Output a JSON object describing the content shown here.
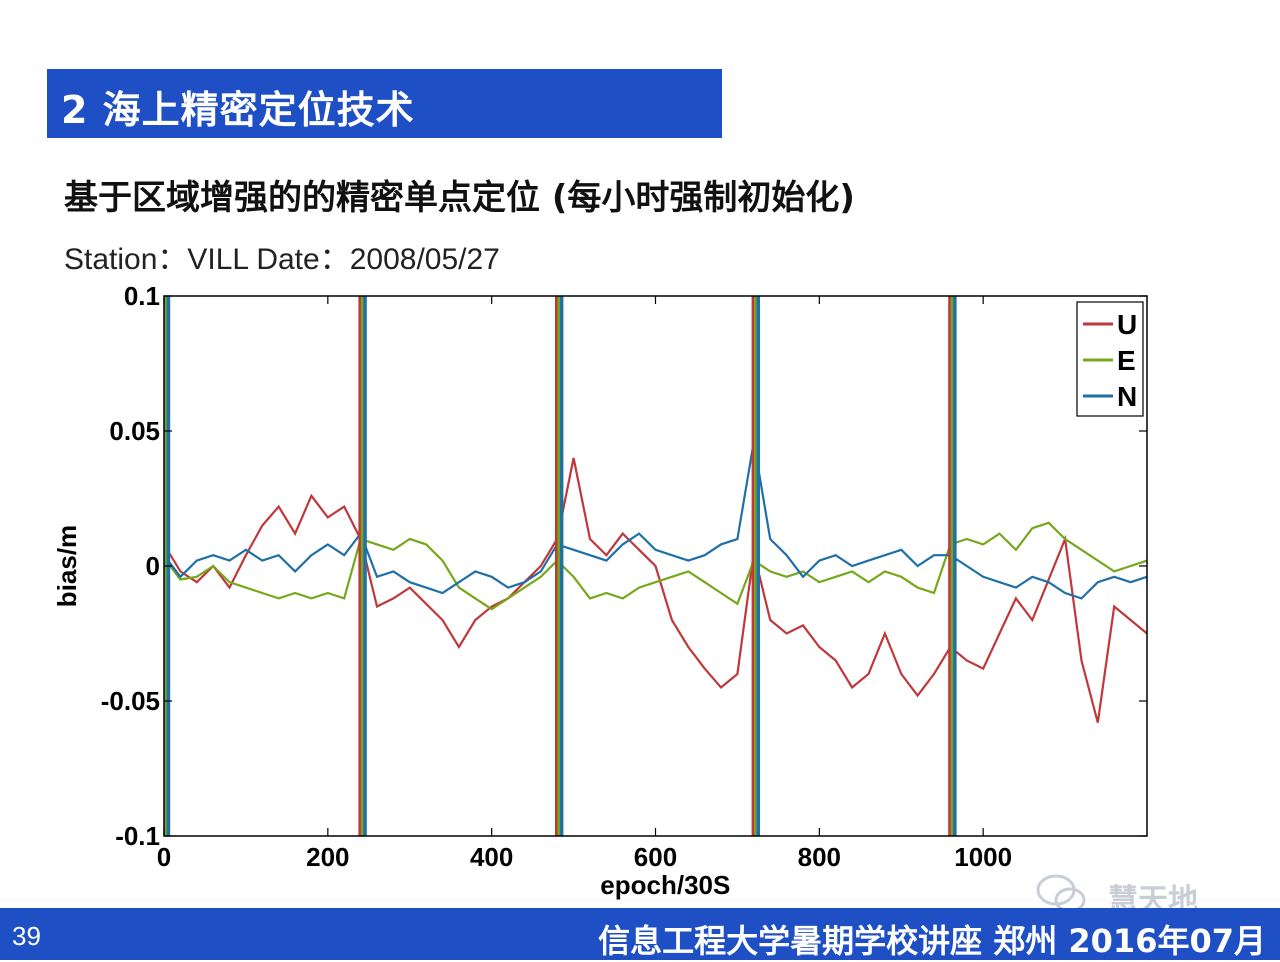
{
  "section": {
    "title": "2 海上精密定位技术"
  },
  "slide": {
    "heading": "基于区域增强的的精密单点定位 (每小时强制初始化)",
    "station_line": "Station：VILL Date：2008/05/27"
  },
  "footer": {
    "page_number": "39",
    "text": "信息工程大学暑期学校讲座  郑州  2016年07月",
    "watermark": "慧天地"
  },
  "colors": {
    "banner": "#1f4fc4",
    "U": "#c0383b",
    "E": "#76a81c",
    "N": "#1f6fa8"
  },
  "chart_data": {
    "type": "line",
    "xlabel": "epoch/30S",
    "ylabel": "bias/m",
    "xlim": [
      0,
      1200
    ],
    "ylim": [
      -0.1,
      0.1
    ],
    "x_ticks": [
      0,
      200,
      400,
      600,
      800,
      1000
    ],
    "x_tick_labels": [
      "0",
      "200",
      "400",
      "600",
      "800",
      "1000"
    ],
    "y_ticks": [
      0.1,
      0.05,
      0,
      -0.05,
      -0.1
    ],
    "y_tick_labels": [
      "0.1",
      "0.05",
      "0",
      "-0.05",
      "-0.1"
    ],
    "legend": {
      "position": "top-right",
      "entries": [
        "U",
        "E",
        "N"
      ]
    },
    "reinitialization_epochs": [
      0,
      240,
      480,
      720,
      960
    ],
    "series": [
      {
        "name": "U",
        "color": "#c0383b",
        "x": [
          0,
          20,
          40,
          60,
          80,
          100,
          120,
          140,
          160,
          180,
          200,
          220,
          240,
          260,
          280,
          300,
          320,
          340,
          360,
          380,
          400,
          420,
          440,
          460,
          480,
          500,
          520,
          540,
          560,
          580,
          600,
          620,
          640,
          660,
          680,
          700,
          720,
          740,
          760,
          780,
          800,
          820,
          840,
          860,
          880,
          900,
          920,
          940,
          960,
          980,
          1000,
          1020,
          1040,
          1060,
          1080,
          1100,
          1120,
          1140,
          1160,
          1180,
          1200
        ],
        "y": [
          0.008,
          -0.002,
          -0.006,
          0.0,
          -0.008,
          0.004,
          0.015,
          0.022,
          0.012,
          0.026,
          0.018,
          0.022,
          0.01,
          -0.015,
          -0.012,
          -0.008,
          -0.014,
          -0.02,
          -0.03,
          -0.02,
          -0.015,
          -0.012,
          -0.006,
          0.0,
          0.01,
          0.04,
          0.01,
          0.004,
          0.012,
          0.006,
          0.0,
          -0.02,
          -0.03,
          -0.038,
          -0.045,
          -0.04,
          0.005,
          -0.02,
          -0.025,
          -0.022,
          -0.03,
          -0.035,
          -0.045,
          -0.04,
          -0.025,
          -0.04,
          -0.048,
          -0.04,
          -0.03,
          -0.035,
          -0.038,
          -0.025,
          -0.012,
          -0.02,
          -0.005,
          0.01,
          -0.035,
          -0.058,
          -0.015,
          -0.02,
          -0.025
        ]
      },
      {
        "name": "E",
        "color": "#76a81c",
        "x": [
          0,
          20,
          40,
          60,
          80,
          100,
          120,
          140,
          160,
          180,
          200,
          220,
          240,
          260,
          280,
          300,
          320,
          340,
          360,
          380,
          400,
          420,
          440,
          460,
          480,
          500,
          520,
          540,
          560,
          580,
          600,
          620,
          640,
          660,
          680,
          700,
          720,
          740,
          760,
          780,
          800,
          820,
          840,
          860,
          880,
          900,
          920,
          940,
          960,
          980,
          1000,
          1020,
          1040,
          1060,
          1080,
          1100,
          1120,
          1140,
          1160,
          1180,
          1200
        ],
        "y": [
          0.003,
          -0.005,
          -0.004,
          0.0,
          -0.006,
          -0.008,
          -0.01,
          -0.012,
          -0.01,
          -0.012,
          -0.01,
          -0.012,
          0.01,
          0.008,
          0.006,
          0.01,
          0.008,
          0.002,
          -0.008,
          -0.012,
          -0.016,
          -0.012,
          -0.008,
          -0.004,
          0.002,
          -0.004,
          -0.012,
          -0.01,
          -0.012,
          -0.008,
          -0.006,
          -0.004,
          -0.002,
          -0.006,
          -0.01,
          -0.014,
          0.002,
          -0.002,
          -0.004,
          -0.002,
          -0.006,
          -0.004,
          -0.002,
          -0.006,
          -0.002,
          -0.004,
          -0.008,
          -0.01,
          0.008,
          0.01,
          0.008,
          0.012,
          0.006,
          0.014,
          0.016,
          0.01,
          0.006,
          0.002,
          -0.002,
          0.0,
          0.002
        ]
      },
      {
        "name": "N",
        "color": "#1f6fa8",
        "x": [
          0,
          20,
          40,
          60,
          80,
          100,
          120,
          140,
          160,
          180,
          200,
          220,
          240,
          260,
          280,
          300,
          320,
          340,
          360,
          380,
          400,
          420,
          440,
          460,
          480,
          500,
          520,
          540,
          560,
          580,
          600,
          620,
          640,
          660,
          680,
          700,
          720,
          740,
          760,
          780,
          800,
          820,
          840,
          860,
          880,
          900,
          920,
          940,
          960,
          980,
          1000,
          1020,
          1040,
          1060,
          1080,
          1100,
          1120,
          1140,
          1160,
          1180,
          1200
        ],
        "y": [
          0.004,
          -0.004,
          0.002,
          0.004,
          0.002,
          0.006,
          0.002,
          0.004,
          -0.002,
          0.004,
          0.008,
          0.004,
          0.012,
          -0.004,
          -0.002,
          -0.006,
          -0.008,
          -0.01,
          -0.006,
          -0.002,
          -0.004,
          -0.008,
          -0.006,
          -0.002,
          0.008,
          0.006,
          0.004,
          0.002,
          0.008,
          0.012,
          0.006,
          0.004,
          0.002,
          0.004,
          0.008,
          0.01,
          0.046,
          0.01,
          0.004,
          -0.004,
          0.002,
          0.004,
          0.0,
          0.002,
          0.004,
          0.006,
          0.0,
          0.004,
          0.004,
          0.0,
          -0.004,
          -0.006,
          -0.008,
          -0.004,
          -0.006,
          -0.01,
          -0.012,
          -0.006,
          -0.004,
          -0.006,
          -0.004
        ]
      }
    ]
  }
}
